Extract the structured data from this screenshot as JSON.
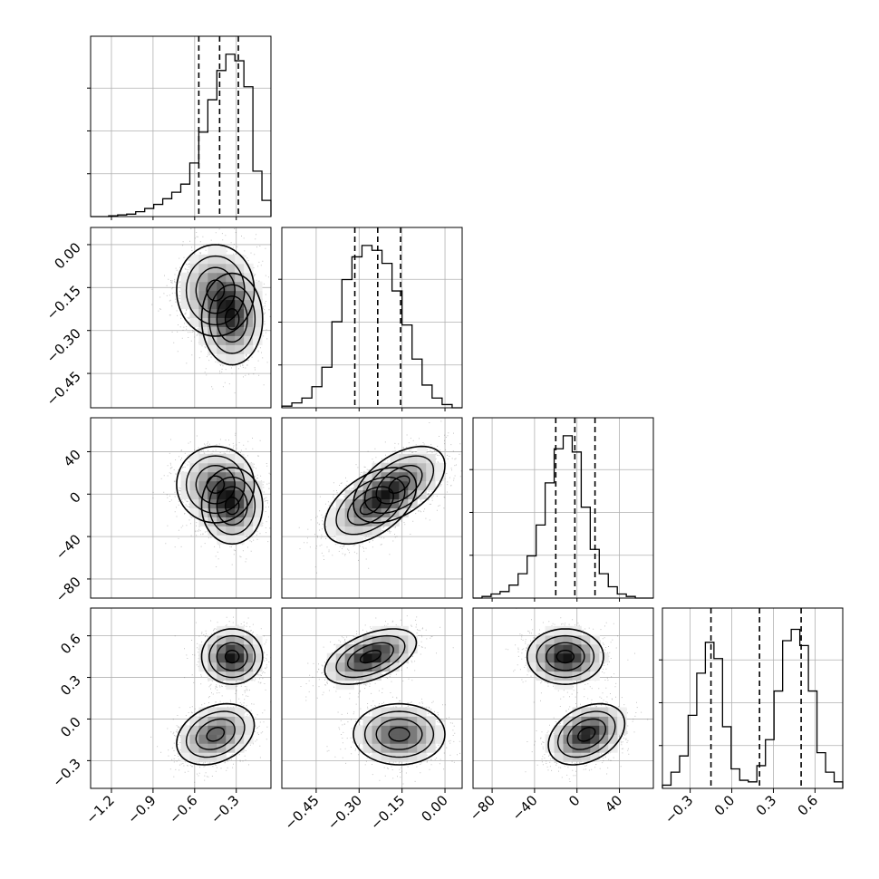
{
  "chart_data": {
    "type": "corner",
    "title": "",
    "params": [
      {
        "range": [
          -1.35,
          -0.05
        ],
        "ticks": [
          -1.2,
          -0.9,
          -0.6,
          -0.3
        ],
        "tick_labels": [
          "−1.2",
          "−0.9",
          "−0.6",
          "−0.3"
        ],
        "quantiles": [
          -0.57,
          -0.42,
          -0.285
        ]
      },
      {
        "range": [
          -0.57,
          0.06
        ],
        "ticks": [
          -0.45,
          -0.3,
          -0.15,
          0.0
        ],
        "tick_labels": [
          "−0.45",
          "−0.30",
          "−0.15",
          "0.00"
        ],
        "quantiles": [
          -0.315,
          -0.235,
          -0.155
        ]
      },
      {
        "range": [
          -98,
          72
        ],
        "ticks": [
          -80,
          -40,
          0,
          40
        ],
        "tick_labels": [
          "−80",
          "−40",
          "0",
          "40"
        ],
        "quantiles": [
          -20,
          -2,
          17
        ]
      },
      {
        "range": [
          -0.5,
          0.8
        ],
        "ticks": [
          -0.3,
          0.0,
          0.3,
          0.6
        ],
        "tick_labels": [
          "−0.3",
          "0.0",
          "0.3",
          "0.6"
        ],
        "quantiles": [
          -0.15,
          0.2,
          0.5
        ]
      }
    ],
    "histograms": [
      {
        "edges": [
          -1.35,
          -0.05
        ],
        "heights": [
          0,
          0,
          0.005,
          0.01,
          0.015,
          0.03,
          0.05,
          0.075,
          0.11,
          0.15,
          0.2,
          0.33,
          0.52,
          0.72,
          0.9,
          1.0,
          0.96,
          0.8,
          0.28,
          0.1
        ]
      },
      {
        "edges": [
          -0.57,
          0.06
        ],
        "heights": [
          0.01,
          0.03,
          0.06,
          0.13,
          0.25,
          0.53,
          0.79,
          0.93,
          1.0,
          0.97,
          0.89,
          0.72,
          0.51,
          0.3,
          0.14,
          0.06,
          0.02,
          0.0
        ]
      },
      {
        "edges": [
          -98,
          72
        ],
        "heights": [
          0,
          0.01,
          0.025,
          0.04,
          0.08,
          0.15,
          0.26,
          0.45,
          0.71,
          0.92,
          1.0,
          0.9,
          0.56,
          0.3,
          0.15,
          0.07,
          0.025,
          0.01,
          0.0,
          0.0
        ]
      },
      {
        "edges": [
          -0.5,
          0.8
        ],
        "heights": [
          0.02,
          0.1,
          0.2,
          0.45,
          0.71,
          0.9,
          0.8,
          0.38,
          0.12,
          0.05,
          0.04,
          0.14,
          0.3,
          0.6,
          0.91,
          0.98,
          0.88,
          0.6,
          0.22,
          0.1,
          0.04
        ]
      }
    ],
    "components": [
      {
        "weight": 0.5,
        "mean": [
          -0.33,
          -0.26,
          -11,
          0.45
        ],
        "sd": [
          0.11,
          0.08,
          18,
          0.1
        ],
        "corr": [
          [
            1,
            0,
            0,
            0
          ],
          [
            0,
            1,
            0.5,
            0.5
          ],
          [
            0,
            0.5,
            1,
            0
          ],
          [
            0,
            0.5,
            0,
            1
          ]
        ]
      },
      {
        "weight": 0.5,
        "mean": [
          -0.45,
          -0.16,
          9,
          -0.11
        ],
        "sd": [
          0.14,
          0.08,
          18,
          0.11
        ],
        "corr": [
          [
            1,
            0,
            0,
            0.3
          ],
          [
            0,
            1,
            0.5,
            0
          ],
          [
            0,
            0.5,
            1,
            0.35
          ],
          [
            0.3,
            0,
            0.35,
            1
          ]
        ]
      }
    ],
    "grid": true,
    "dashed_quantile_lines": true,
    "colors": {
      "axis": "#000000",
      "grid": "#b0b0b0",
      "points": "#555555"
    }
  }
}
